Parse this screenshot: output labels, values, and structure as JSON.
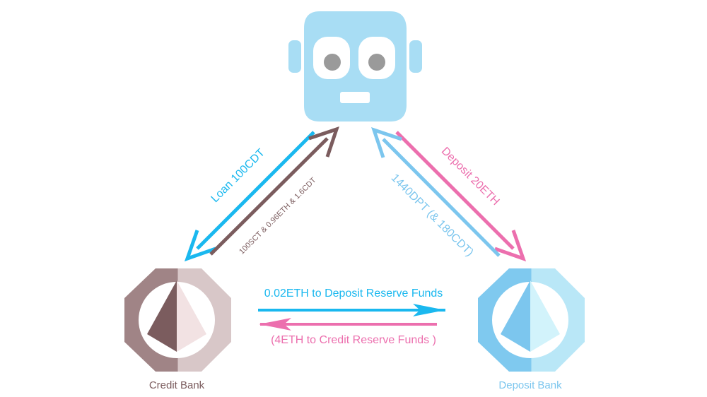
{
  "robot": {
    "icon": "robot-icon",
    "color": "#a8ddf4",
    "eye_color": "#9a9a9a"
  },
  "flows": {
    "loan": {
      "label": "Loan 100CDT",
      "color": "#1ab8ef"
    },
    "repay": {
      "label": "100SCT & 0.96ETH & 1.6CDT",
      "color": "#7b5c5e"
    },
    "deposit": {
      "label": "Deposit 20ETH",
      "color": "#ec6fae"
    },
    "dpt": {
      "label": "1440DPT (& 180CDT)",
      "color": "#7cc6ee"
    },
    "eth_to_deposit_reserve": {
      "label": "0.02ETH  to Deposit Reserve Funds",
      "color": "#1ab8ef"
    },
    "eth_to_credit_reserve": {
      "label": "(4ETH to Credit Reserve Funds )",
      "color": "#ec6fae"
    }
  },
  "banks": {
    "credit": {
      "label": "Credit Bank",
      "icon": "ethereum-icon",
      "label_color": "#7b5c5e",
      "color_dark": "#a88a8c",
      "color_light": "#e6d6d7"
    },
    "deposit": {
      "label": "Deposit Bank",
      "icon": "ethereum-icon",
      "label_color": "#7cc6ee",
      "color_dark": "#86ccf0",
      "color_light": "#cdeffa"
    }
  }
}
